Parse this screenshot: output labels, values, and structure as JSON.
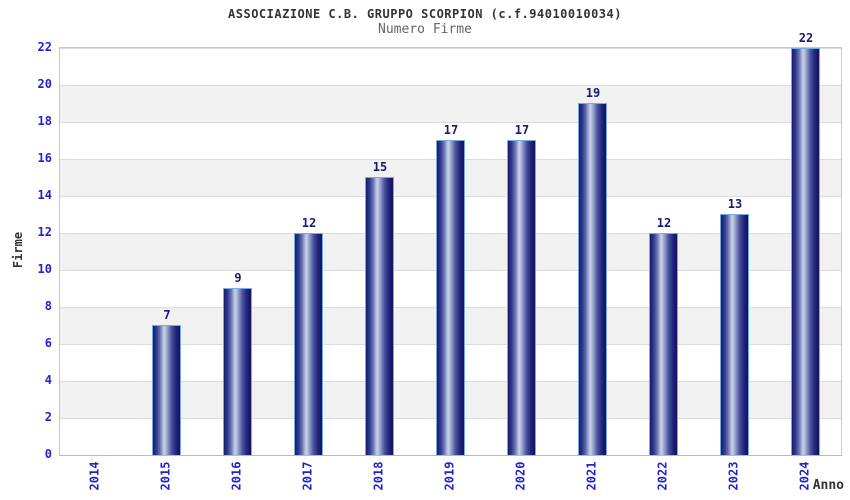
{
  "chart_data": {
    "type": "bar",
    "title": "ASSOCIAZIONE C.B. GRUPPO SCORPION (c.f.94010010034)",
    "subtitle": "Numero Firme",
    "xlabel": "Anno",
    "ylabel": "Firme",
    "categories": [
      "2014",
      "2015",
      "2016",
      "2017",
      "2018",
      "2019",
      "2020",
      "2021",
      "2022",
      "2023",
      "2024"
    ],
    "values": [
      0,
      7,
      9,
      12,
      15,
      17,
      17,
      19,
      12,
      13,
      22
    ],
    "yticks": [
      0,
      2,
      4,
      6,
      8,
      10,
      12,
      14,
      16,
      18,
      20,
      22
    ],
    "ylim": [
      0,
      22
    ],
    "grid": "horizontal gridlines every 2 units with alternating white/gray bands",
    "legend_position": "none",
    "bar_value_labels_shown": true
  },
  "colors": {
    "axis_tick_label": "#2222cc",
    "bar_value_label": "#191970",
    "bar_dark": "#1a1a6b",
    "bar_light": "#ccd3ea",
    "bar_border": "#76ace4",
    "band_gray": "#f1f1f1",
    "grid_line": "#dcdcdc",
    "plot_border": "#c8c8c8",
    "title_color": "#333333",
    "subtitle_color": "#666666"
  }
}
